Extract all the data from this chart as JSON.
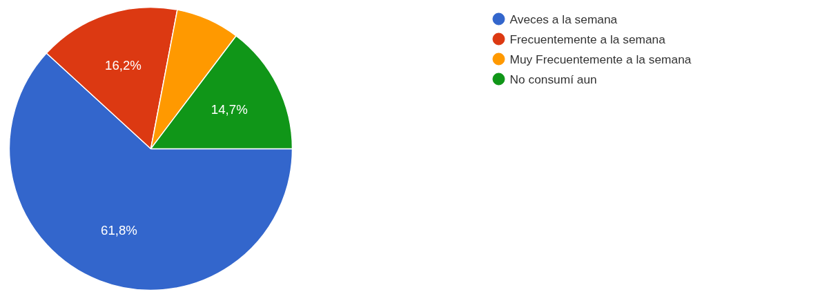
{
  "chart_data": {
    "type": "pie",
    "categories": [
      "Aveces a la semana",
      "Frecuentemente a la semana",
      "Muy Frecuentemente a la semana",
      "No consumí aun"
    ],
    "values": [
      61.8,
      16.2,
      7.3,
      14.7
    ],
    "value_labels": [
      "61,8%",
      "16,2%",
      null,
      "14,7%"
    ],
    "colors": [
      "#3366cc",
      "#dc3912",
      "#ff9900",
      "#109618"
    ],
    "legend": "right"
  }
}
